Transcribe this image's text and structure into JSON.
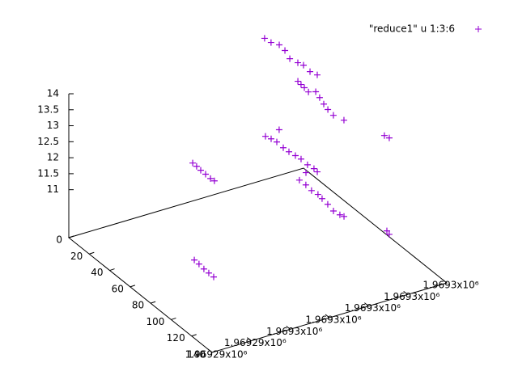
{
  "chart_data": {
    "type": "scatter3d",
    "legend": "\"reduce1\" u 1:3:6",
    "color": "#9400d3",
    "x": [
      0,
      0,
      0,
      0,
      0,
      0,
      0,
      14,
      14,
      14,
      14,
      14,
      14,
      28,
      28,
      28,
      28,
      42,
      42,
      84,
      84,
      28,
      28,
      28,
      28,
      28,
      28,
      28,
      28,
      28,
      28,
      28,
      56,
      56,
      56,
      56,
      56,
      56,
      56,
      56,
      56,
      28,
      28,
      28,
      28,
      28,
      28,
      98,
      98,
      98,
      98,
      98,
      126,
      126,
      28
    ],
    "y": [
      1969302.01,
      1969302.34,
      1969302.76,
      1969303.05,
      1969303.3,
      1969303.71,
      1969304.0,
      1969303.6,
      1969303.97,
      1969302.98,
      1969303.14,
      1969303.31,
      1969303.52,
      1969303.16,
      1969303.36,
      1969303.57,
      1969303.78,
      1969303.33,
      1969303.87,
      1969303.74,
      1969303.99,
      1969300.59,
      1969300.88,
      1969301.17,
      1969301.5,
      1969301.79,
      1969302.12,
      1969302.41,
      1969302.74,
      1969303.07,
      1969303.24,
      1969301.29,
      1969300.86,
      1969301.19,
      1969301.48,
      1969301.81,
      1969302.02,
      1969302.31,
      1969302.6,
      1969302.93,
      1969303.14,
      1969296.87,
      1969297.07,
      1969297.28,
      1969297.53,
      1969297.78,
      1969297.98,
      1969293.29,
      1969293.53,
      1969293.78,
      1969294.03,
      1969294.28,
      1969301.67,
      1969301.79,
      1969302.66
    ],
    "z": [
      13.92,
      13.73,
      13.58,
      13.35,
      13.05,
      12.85,
      12.72,
      12.95,
      12.78,
      12.76,
      12.63,
      12.5,
      12.33,
      12.76,
      12.54,
      12.3,
      12.09,
      12.35,
      12.1,
      12.72,
      12.6,
      11.83,
      11.7,
      11.55,
      11.31,
      11.13,
      10.95,
      10.79,
      10.55,
      10.37,
      10.24,
      11.91,
      11.13,
      10.92,
      10.69,
      10.51,
      10.34,
      10.11,
      9.85,
      9.67,
      9.58,
      11.67,
      11.53,
      11.37,
      11.2,
      11.02,
      10.91,
      11.08,
      10.91,
      10.71,
      10.54,
      10.37,
      11.19,
      11.06,
      10.32
    ],
    "xlim": [
      0,
      140
    ],
    "xticks": [
      0,
      20,
      40,
      60,
      80,
      100,
      120,
      140
    ],
    "ylim": [
      1969292,
      1969304
    ],
    "yticks": [
      {
        "value": 1969292,
        "label": "1.96929x10⁶"
      },
      {
        "value": 1969294,
        "label": "1.96929x10⁶"
      },
      {
        "value": 1969296,
        "label": "1.9693x10⁶"
      },
      {
        "value": 1969298,
        "label": "1.9693x10⁶"
      },
      {
        "value": 1969300,
        "label": "1.9693x10⁶"
      },
      {
        "value": 1969302,
        "label": "1.9693x10⁶"
      },
      {
        "value": 1969304,
        "label": "1.9693x10⁶"
      }
    ],
    "zlim": [
      9.5,
      14
    ],
    "zticks": [
      11,
      11.5,
      12,
      12.5,
      13,
      13.5,
      14
    ]
  }
}
